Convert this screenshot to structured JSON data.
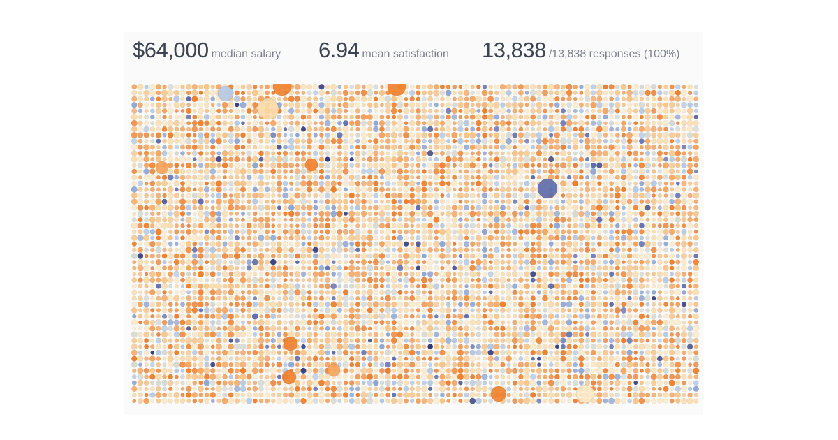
{
  "stats": {
    "salary": {
      "value": "$64,000",
      "label": "median salary"
    },
    "satisfaction": {
      "value": "6.94",
      "label": "mean satisfaction"
    },
    "responses": {
      "value": "13,838",
      "label": "/13,838 responses (100%)"
    }
  },
  "colors": {
    "palette": [
      "#f07f2b",
      "#f6a25a",
      "#f9c486",
      "#fbdcab",
      "#fde9c6",
      "#d6d8d2",
      "#b4c8e2",
      "#8fa6d3",
      "#5b6aa9",
      "#2f3778"
    ],
    "background": "#fafafa",
    "text_primary": "#3d4350",
    "text_secondary": "#7c818b"
  },
  "grid": {
    "description_shown": false
  }
}
